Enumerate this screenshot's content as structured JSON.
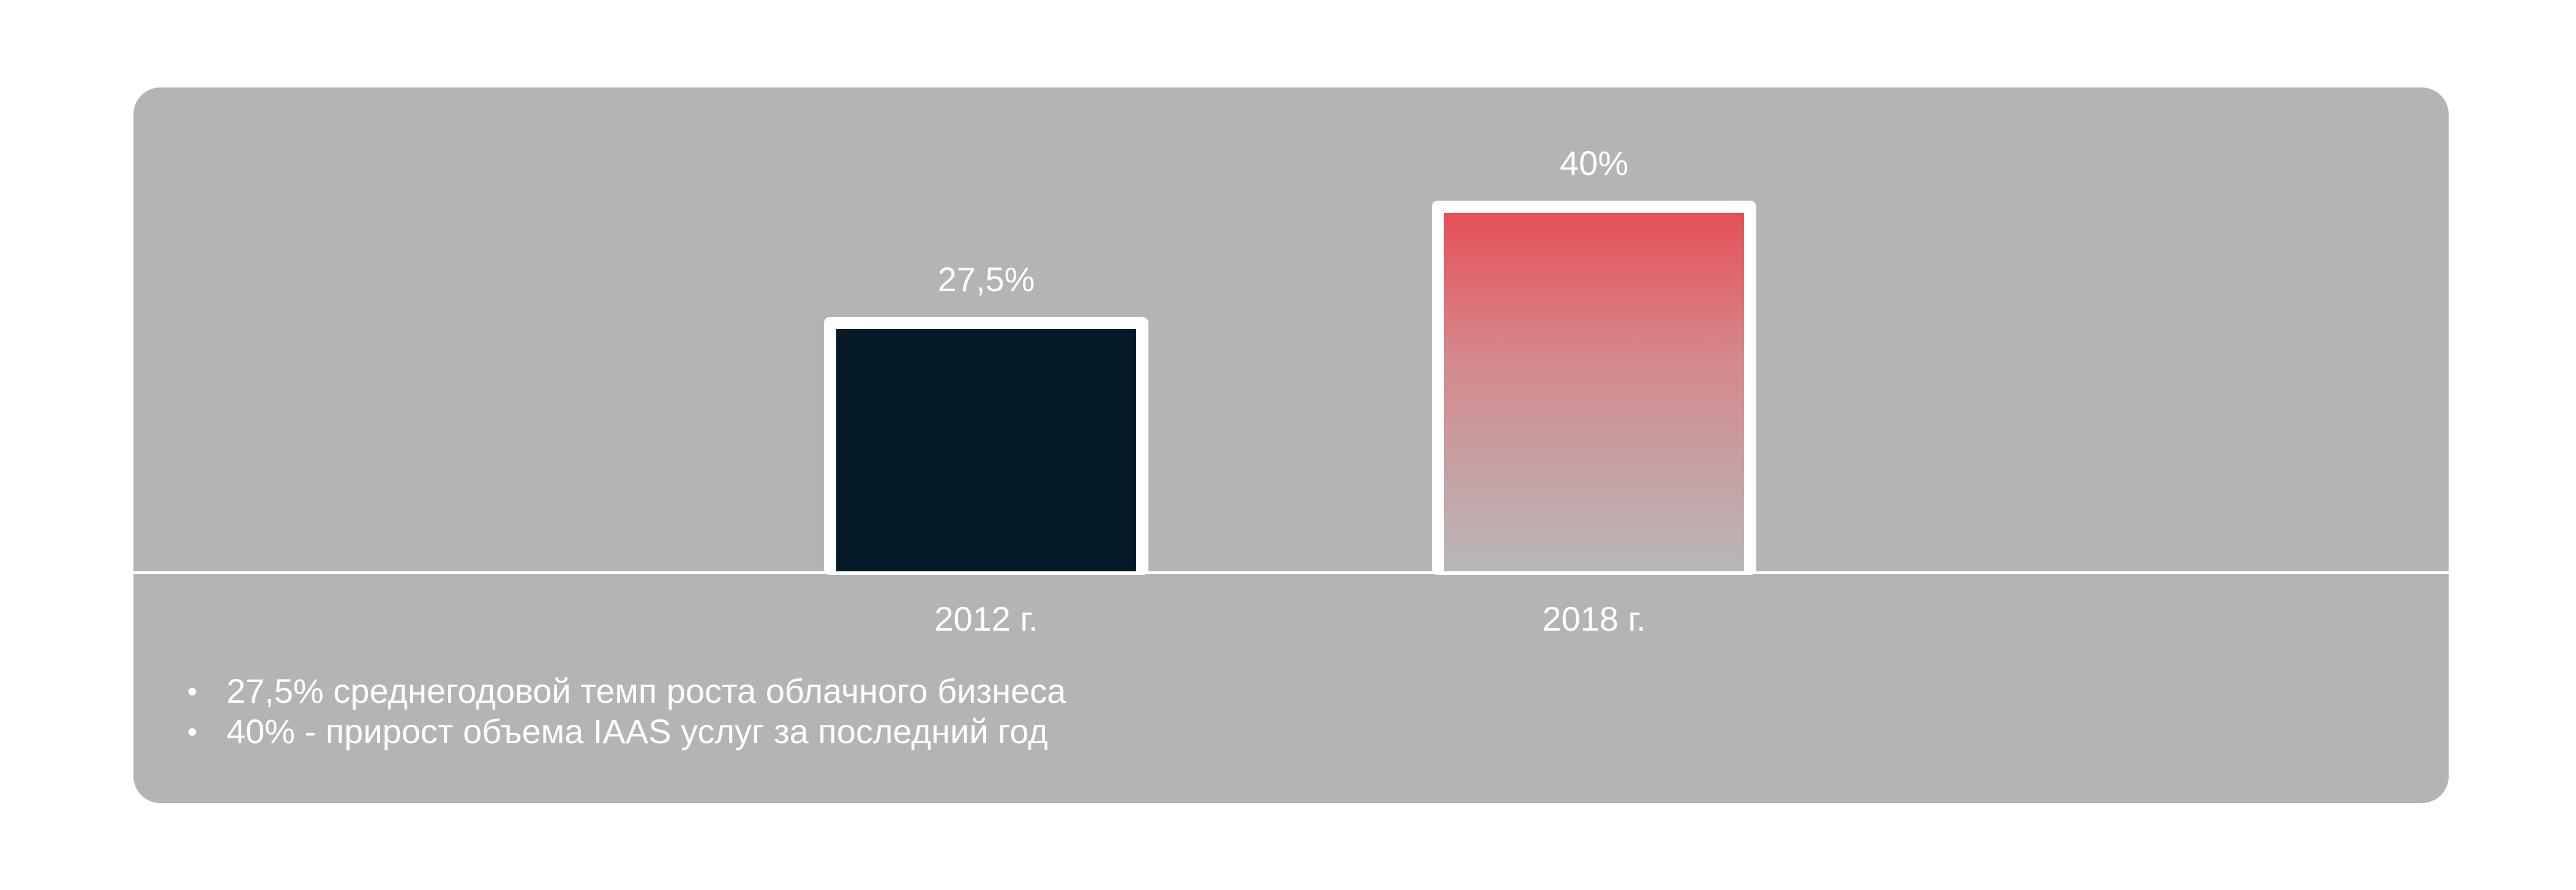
{
  "chart_data": {
    "type": "bar",
    "title": "",
    "xlabel": "",
    "ylabel": "",
    "categories": [
      "2012 г.",
      "2018 г."
    ],
    "values": [
      27.5,
      40
    ],
    "value_labels": [
      "27,5%",
      "40%"
    ],
    "ylim": [
      0,
      40
    ],
    "grid": false,
    "colors": {
      "card_background": "#b4b4b4",
      "baseline": "#ffffff",
      "bar_outline": "#ffffff",
      "bar_2012": "#041a29",
      "bar_2018_top": "#e65058",
      "bar_2018_bottom": "#b8b8b8",
      "text": "#ffffff"
    }
  },
  "notes": [
    "27,5% среднегодовой темп роста облачного бизнеса",
    "40% - прирост объема IAAS услуг за последний год"
  ]
}
